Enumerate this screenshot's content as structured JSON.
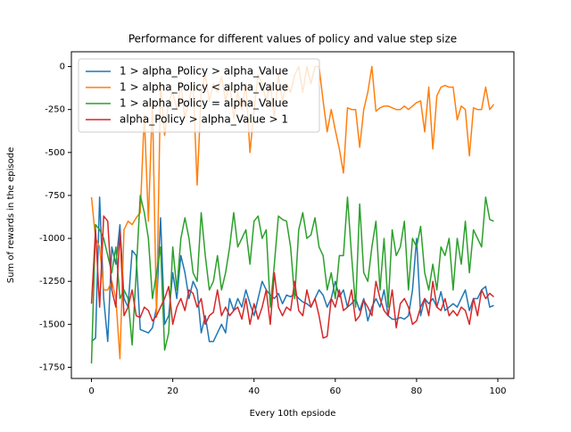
{
  "chart_data": {
    "type": "line",
    "title": "Performance for different values of policy and value step size",
    "x_label": "Every 10th epsiode",
    "y_label": "Sum of rewards in the episode",
    "legend": "upper left",
    "xlim": [
      -4.95,
      103.95
    ],
    "ylim": [
      -1815,
      86
    ],
    "xticks": [
      0,
      20,
      40,
      60,
      80,
      100
    ],
    "yticks": [
      0,
      -250,
      -500,
      -750,
      -1000,
      -1250,
      -1500,
      -1750
    ],
    "x": [
      0,
      1,
      2,
      3,
      4,
      5,
      6,
      7,
      8,
      9,
      10,
      11,
      12,
      13,
      14,
      15,
      16,
      17,
      18,
      19,
      20,
      21,
      22,
      23,
      24,
      25,
      26,
      27,
      28,
      29,
      30,
      31,
      32,
      33,
      34,
      35,
      36,
      37,
      38,
      39,
      40,
      41,
      42,
      43,
      44,
      45,
      46,
      47,
      48,
      49,
      50,
      51,
      52,
      53,
      54,
      55,
      56,
      57,
      58,
      59,
      60,
      61,
      62,
      63,
      64,
      65,
      66,
      67,
      68,
      69,
      70,
      71,
      72,
      73,
      74,
      75,
      76,
      77,
      78,
      79,
      80,
      81,
      82,
      83,
      84,
      85,
      86,
      87,
      88,
      89,
      90,
      91,
      92,
      93,
      94,
      95,
      96,
      97,
      98,
      99
    ],
    "series": [
      {
        "name": "1 > alpha_Policy > alpha_Value",
        "color": "#1f77b4",
        "values": [
          -1600,
          -1580,
          -760,
          -1350,
          -1600,
          -1050,
          -1150,
          -920,
          -1350,
          -1400,
          -1070,
          -1100,
          -1530,
          -1540,
          -1550,
          -1520,
          -1400,
          -880,
          -1500,
          -1450,
          -1200,
          -1350,
          -1100,
          -1200,
          -1350,
          -1250,
          -1300,
          -1550,
          -1450,
          -1600,
          -1600,
          -1550,
          -1500,
          -1550,
          -1350,
          -1420,
          -1350,
          -1400,
          -1300,
          -1380,
          -1450,
          -1350,
          -1250,
          -1300,
          -1330,
          -1350,
          -1320,
          -1380,
          -1330,
          -1340,
          -1320,
          -1350,
          -1370,
          -1380,
          -1400,
          -1350,
          -1300,
          -1330,
          -1400,
          -1350,
          -1250,
          -1340,
          -1300,
          -1400,
          -1380,
          -1350,
          -1420,
          -1350,
          -1480,
          -1400,
          -1350,
          -1400,
          -1300,
          -1450,
          -1470,
          -1470,
          -1460,
          -1470,
          -1450,
          -1300,
          -1000,
          -1450,
          -1350,
          -1380,
          -1350,
          -1400,
          -1310,
          -1420,
          -1400,
          -1380,
          -1400,
          -1350,
          -1300,
          -1420,
          -1350,
          -1350,
          -1300,
          -1280,
          -1400,
          -1390
        ]
      },
      {
        "name": "1 > alpha_Policy < alpha_Value",
        "color": "#ff7f0e",
        "values": [
          -760,
          -1000,
          -1050,
          -1300,
          -1300,
          -1250,
          -1350,
          -1700,
          -950,
          -900,
          -920,
          -880,
          -850,
          -280,
          -900,
          -200,
          -1460,
          -100,
          -400,
          -200,
          -150,
          -250,
          -100,
          -300,
          -200,
          -100,
          -690,
          -150,
          -50,
          -200,
          -100,
          -150,
          -60,
          -200,
          -100,
          -300,
          -150,
          -250,
          -100,
          -500,
          -250,
          -50,
          -100,
          -200,
          -100,
          -300,
          -50,
          -200,
          -100,
          -150,
          -50,
          0,
          -150,
          0,
          -100,
          0,
          0,
          -200,
          -380,
          -250,
          -370,
          -480,
          -620,
          -240,
          -250,
          -250,
          -470,
          -250,
          -150,
          0,
          -260,
          -240,
          -230,
          -230,
          -240,
          -250,
          -250,
          -230,
          -250,
          -230,
          -210,
          -200,
          -380,
          -120,
          -480,
          -170,
          -120,
          -110,
          -120,
          -120,
          -310,
          -230,
          -250,
          -520,
          -240,
          -250,
          -250,
          -120,
          -250,
          -220
        ]
      },
      {
        "name": "1 > alpha_Policy = alpha_Value",
        "color": "#2ca02c",
        "values": [
          -1728,
          -920,
          -950,
          -1000,
          -1100,
          -1200,
          -1050,
          -1350,
          -1300,
          -1350,
          -1620,
          -1200,
          -750,
          -850,
          -1000,
          -1350,
          -1200,
          -1050,
          -1650,
          -1550,
          -1050,
          -1300,
          -1000,
          -880,
          -1000,
          -1200,
          -1250,
          -850,
          -1100,
          -1300,
          -1250,
          -1100,
          -1300,
          -1200,
          -1050,
          -850,
          -1050,
          -1000,
          -950,
          -1150,
          -900,
          -870,
          -1000,
          -950,
          -1400,
          -1150,
          -870,
          -890,
          -900,
          -1050,
          -1350,
          -950,
          -850,
          -1000,
          -980,
          -880,
          -1050,
          -1100,
          -1300,
          -1200,
          -1350,
          -1100,
          -1100,
          -760,
          -1100,
          -1400,
          -800,
          -1200,
          -1250,
          -1050,
          -900,
          -1300,
          -1000,
          -1400,
          -950,
          -1100,
          -1050,
          -900,
          -1300,
          -1000,
          -1050,
          -930,
          -1200,
          -1300,
          -1150,
          -1300,
          -1050,
          -1100,
          -1000,
          -1300,
          -1000,
          -1150,
          -900,
          -1200,
          -950,
          -1000,
          -1050,
          -760,
          -890,
          -900
        ]
      },
      {
        "name": "alpha_Policy > alpha_Value > 1",
        "color": "#d62728",
        "values": [
          -1380,
          -950,
          -1400,
          -870,
          -900,
          -1300,
          -1400,
          -960,
          -1450,
          -1400,
          -1300,
          -1450,
          -1460,
          -1400,
          -1420,
          -1480,
          -1450,
          -1400,
          -1350,
          -1280,
          -1500,
          -1400,
          -1350,
          -1420,
          -1300,
          -1320,
          -1400,
          -1350,
          -1500,
          -1450,
          -1430,
          -1300,
          -1450,
          -1400,
          -1450,
          -1420,
          -1400,
          -1470,
          -1350,
          -1500,
          -1380,
          -1470,
          -1400,
          -1300,
          -1500,
          -1200,
          -1400,
          -1450,
          -1400,
          -1420,
          -1250,
          -1420,
          -1450,
          -1300,
          -1400,
          -1350,
          -1450,
          -1580,
          -1570,
          -1350,
          -1400,
          -1300,
          -1420,
          -1400,
          -1300,
          -1480,
          -1450,
          -1360,
          -1400,
          -1450,
          -1250,
          -1350,
          -1420,
          -1450,
          -1300,
          -1520,
          -1380,
          -1350,
          -1400,
          -1500,
          -1480,
          -1400,
          -1350,
          -1450,
          -1250,
          -1400,
          -1420,
          -1350,
          -1450,
          -1420,
          -1450,
          -1400,
          -1420,
          -1500,
          -1350,
          -1450,
          -1300,
          -1350,
          -1320,
          -1340
        ]
      }
    ]
  }
}
